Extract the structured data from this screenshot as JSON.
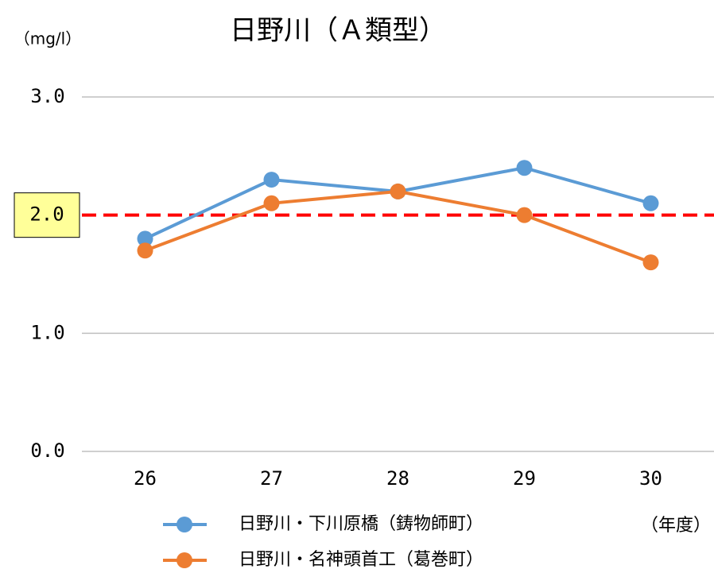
{
  "chart_data": {
    "type": "line",
    "title": "日野川（Ａ類型）",
    "y_unit": "（mg/l）",
    "x_unit": "（年度）",
    "categories": [
      "26",
      "27",
      "28",
      "29",
      "30"
    ],
    "series": [
      {
        "name": "日野川・下川原橋（鋳物師町）",
        "color": "#5b9bd5",
        "values": [
          1.8,
          2.3,
          2.2,
          2.4,
          2.1
        ]
      },
      {
        "name": "日野川・名神頭首工（葛巻町）",
        "color": "#ed7d31",
        "values": [
          1.7,
          2.1,
          2.2,
          2.0,
          1.6
        ]
      }
    ],
    "ylim": [
      0,
      3
    ],
    "yticks": [
      {
        "value": 0,
        "label": "0.0"
      },
      {
        "value": 1,
        "label": "1.0"
      },
      {
        "value": 3,
        "label": "3.0"
      }
    ],
    "reference_line": {
      "value": 2,
      "label": "2.0",
      "color": "#ff0000"
    },
    "grid": true
  }
}
